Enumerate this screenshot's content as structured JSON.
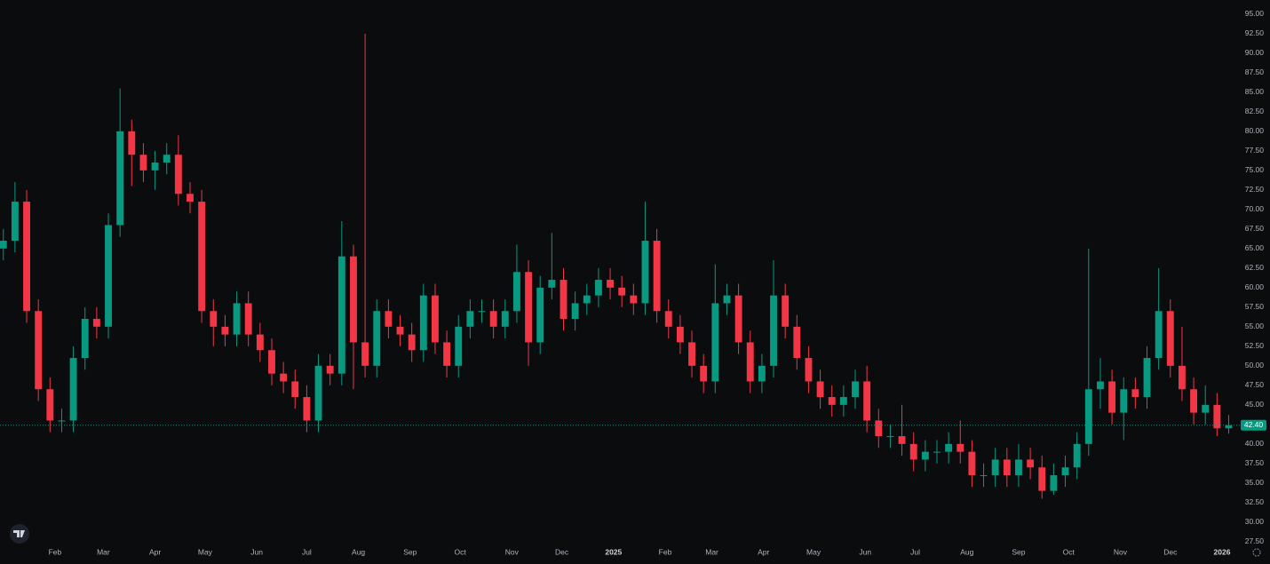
{
  "chart_data": {
    "type": "candlestick",
    "x": [
      0,
      7,
      14,
      21,
      28,
      35,
      42,
      49,
      56,
      63,
      70,
      77,
      84,
      91,
      98,
      105,
      112,
      119,
      126,
      133,
      140,
      147,
      154,
      161,
      168,
      175,
      182,
      189,
      196,
      203,
      210,
      217,
      224,
      231,
      238,
      245,
      252,
      259,
      266,
      273,
      280,
      287,
      294,
      301,
      308,
      315,
      322,
      329,
      336,
      343,
      350,
      357,
      364,
      371,
      378,
      385,
      392,
      399,
      406,
      413,
      420,
      427,
      434,
      441,
      448,
      455,
      462,
      469,
      476,
      483,
      490,
      497,
      504,
      511,
      518,
      525,
      532,
      539,
      546,
      553,
      560,
      567,
      574,
      581,
      588,
      595,
      602,
      609,
      616,
      623,
      630,
      637,
      644,
      651,
      658,
      665,
      672,
      679,
      686,
      693,
      700,
      707,
      714,
      721,
      728,
      735
    ],
    "open": [
      65,
      66,
      71,
      57,
      47,
      43,
      43,
      51,
      56,
      55,
      68,
      80,
      77,
      75,
      76,
      77,
      72,
      71,
      57,
      55,
      54,
      58,
      54,
      52,
      49,
      48,
      46,
      43,
      50,
      49,
      64,
      53,
      50,
      57,
      55,
      54,
      52,
      59,
      53,
      50,
      55,
      57,
      57,
      55,
      57,
      62,
      53,
      60,
      61,
      56,
      58,
      59,
      61,
      60,
      59,
      58,
      66,
      57,
      55,
      53,
      50,
      48,
      58,
      59,
      53,
      48,
      50,
      59,
      55,
      51,
      48,
      46,
      45,
      46,
      48,
      43,
      41,
      41,
      40,
      38,
      39,
      39,
      40,
      39,
      36,
      36,
      38,
      36,
      38,
      37,
      34,
      36,
      37,
      40,
      47,
      48,
      44,
      47,
      46,
      51,
      57,
      50,
      47,
      44,
      45,
      42
    ],
    "high": [
      67.5,
      73.5,
      72.5,
      58.5,
      48.5,
      44.5,
      52.5,
      57.5,
      57.5,
      69.5,
      85.5,
      81.5,
      78.5,
      77.5,
      78.5,
      79.5,
      73.5,
      72.5,
      58.5,
      56.5,
      59.5,
      59.5,
      55.5,
      53.5,
      50.5,
      49.5,
      47.5,
      51.5,
      51.5,
      68.5,
      65.5,
      92.5,
      58.5,
      58.5,
      56.5,
      55.5,
      60.5,
      60.5,
      54.5,
      56.5,
      58.5,
      58.5,
      58.5,
      58.5,
      65.5,
      63.5,
      61.5,
      67,
      62.5,
      59.5,
      60.5,
      62.5,
      62.5,
      61.5,
      60.5,
      71,
      67.5,
      58.5,
      56.5,
      54.5,
      51.5,
      63,
      60.5,
      60.5,
      54.5,
      51.5,
      63.5,
      60.5,
      56.5,
      52.5,
      49.5,
      47.5,
      47.5,
      49.5,
      50,
      44.5,
      42.5,
      45,
      41.5,
      40.5,
      40.5,
      41.5,
      43,
      40.5,
      37.5,
      39.5,
      39.5,
      40,
      39.5,
      38.5,
      37.5,
      38.5,
      41.5,
      65,
      51,
      49.5,
      48.5,
      48.5,
      52.5,
      62.5,
      58.5,
      55,
      48.5,
      47.5,
      46.5,
      43.7
    ],
    "low": [
      63.5,
      64.5,
      55.5,
      45.5,
      41.5,
      41.5,
      41.5,
      49.5,
      53.5,
      53.5,
      66.5,
      73,
      73.5,
      72.5,
      74.5,
      70.5,
      69.5,
      55.5,
      52.5,
      52.5,
      52.5,
      52.5,
      50.5,
      47.5,
      46.5,
      44.5,
      41.5,
      41.5,
      47.5,
      47.5,
      47,
      48.5,
      48.5,
      53.5,
      52.5,
      50.5,
      50.5,
      51.5,
      48.5,
      48.5,
      53.5,
      55.5,
      53.5,
      53.5,
      55.5,
      50,
      51.5,
      58.5,
      54.5,
      54.5,
      56.5,
      57.5,
      58.5,
      57.5,
      56.5,
      56.5,
      55.5,
      53.5,
      51.5,
      48.5,
      46.5,
      46.5,
      56.5,
      51.5,
      46.5,
      46.5,
      48.5,
      53.5,
      49.5,
      46.5,
      44.5,
      43.5,
      43.5,
      44.5,
      41.5,
      39.5,
      39.5,
      38.5,
      36.5,
      36.5,
      37.5,
      37.5,
      37.5,
      34.5,
      34.5,
      34.5,
      34.5,
      34.5,
      35.5,
      33,
      33.5,
      34.5,
      35.5,
      38.5,
      44.5,
      42.5,
      40.5,
      44.5,
      44.5,
      49.5,
      48.5,
      45.5,
      42.5,
      42.5,
      41,
      41.3
    ],
    "close": [
      66,
      71,
      57,
      47,
      43,
      43,
      51,
      56,
      55,
      68,
      80,
      77,
      75,
      76,
      77,
      72,
      71,
      57,
      55,
      54,
      58,
      54,
      52,
      49,
      48,
      46,
      43,
      50,
      49,
      64,
      53,
      50,
      57,
      55,
      54,
      52,
      59,
      53,
      50,
      55,
      57,
      57,
      55,
      57,
      62,
      53,
      60,
      61,
      56,
      58,
      59,
      61,
      60,
      59,
      58,
      66,
      57,
      55,
      53,
      50,
      48,
      58,
      59,
      53,
      48,
      50,
      59,
      55,
      51,
      48,
      46,
      45,
      46,
      48,
      43,
      41,
      41,
      40,
      38,
      39,
      39,
      40,
      39,
      36,
      36,
      38,
      36,
      38,
      37,
      34,
      36,
      37,
      40,
      47,
      48,
      44,
      47,
      46,
      51,
      57,
      50,
      47,
      44,
      45,
      42,
      42.4
    ],
    "up_color": "#089981",
    "down_color": "#f23645",
    "xlim": [
      -2,
      739
    ],
    "ylim": [
      26.8,
      96.8
    ],
    "xticks": [
      {
        "value": 31,
        "label": "Feb"
      },
      {
        "value": 60,
        "label": "Mar"
      },
      {
        "value": 91,
        "label": "Apr"
      },
      {
        "value": 121,
        "label": "May"
      },
      {
        "value": 152,
        "label": "Jun"
      },
      {
        "value": 182,
        "label": "Jul"
      },
      {
        "value": 213,
        "label": "Aug"
      },
      {
        "value": 244,
        "label": "Sep"
      },
      {
        "value": 274,
        "label": "Oct"
      },
      {
        "value": 305,
        "label": "Nov"
      },
      {
        "value": 335,
        "label": "Dec"
      },
      {
        "value": 366,
        "label": "2025"
      },
      {
        "value": 397,
        "label": "Feb"
      },
      {
        "value": 425,
        "label": "Mar"
      },
      {
        "value": 456,
        "label": "Apr"
      },
      {
        "value": 486,
        "label": "May"
      },
      {
        "value": 517,
        "label": "Jun"
      },
      {
        "value": 547,
        "label": "Jul"
      },
      {
        "value": 578,
        "label": "Aug"
      },
      {
        "value": 609,
        "label": "Sep"
      },
      {
        "value": 639,
        "label": "Oct"
      },
      {
        "value": 670,
        "label": "Nov"
      },
      {
        "value": 700,
        "label": "Dec"
      },
      {
        "value": 731,
        "label": "2026"
      }
    ],
    "yticks": [
      {
        "value": 27.5,
        "label": "27.50"
      },
      {
        "value": 30,
        "label": "30.00"
      },
      {
        "value": 32.5,
        "label": "32.50"
      },
      {
        "value": 35,
        "label": "35.00"
      },
      {
        "value": 37.5,
        "label": "37.50"
      },
      {
        "value": 40,
        "label": "40.00"
      },
      {
        "value": 42.5,
        "label": "42.50"
      },
      {
        "value": 45,
        "label": "45.00"
      },
      {
        "value": 47.5,
        "label": "47.50"
      },
      {
        "value": 50,
        "label": "50.00"
      },
      {
        "value": 52.5,
        "label": "52.50"
      },
      {
        "value": 55,
        "label": "55.00"
      },
      {
        "value": 57.5,
        "label": "57.50"
      },
      {
        "value": 60,
        "label": "60.00"
      },
      {
        "value": 62.5,
        "label": "62.50"
      },
      {
        "value": 65,
        "label": "65.00"
      },
      {
        "value": 67.5,
        "label": "67.50"
      },
      {
        "value": 70,
        "label": "70.00"
      },
      {
        "value": 72.5,
        "label": "72.50"
      },
      {
        "value": 75,
        "label": "75.00"
      },
      {
        "value": 77.5,
        "label": "77.50"
      },
      {
        "value": 80,
        "label": "80.00"
      },
      {
        "value": 82.5,
        "label": "82.50"
      },
      {
        "value": 85,
        "label": "85.00"
      },
      {
        "value": 87.5,
        "label": "87.50"
      },
      {
        "value": 90,
        "label": "90.00"
      },
      {
        "value": 92.5,
        "label": "92.50"
      },
      {
        "value": 95,
        "label": "95.00"
      }
    ],
    "price_line": {
      "value": 42.4,
      "label": "42.40"
    },
    "grid": false
  }
}
